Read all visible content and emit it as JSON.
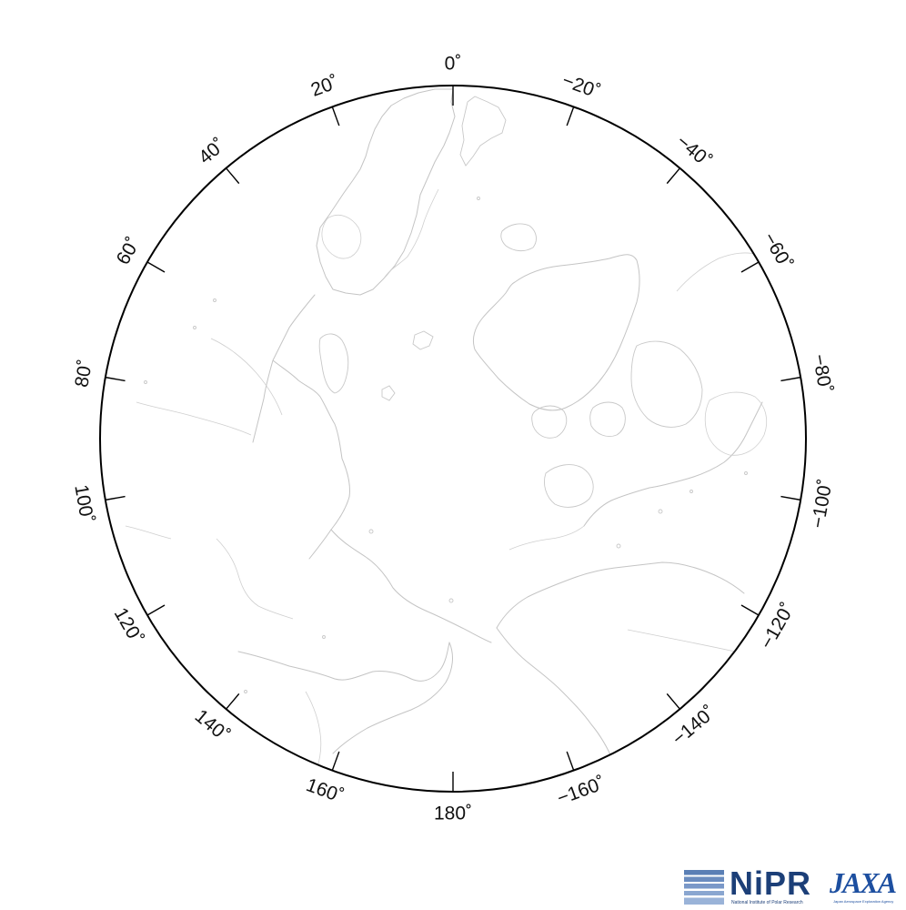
{
  "map": {
    "projection": "polar-stereographic",
    "hemisphere": "north",
    "center_longitude_at_top": 0,
    "frame_color": "#000000",
    "coastline_color": "#c4c4c4",
    "background_color": "#ffffff",
    "longitude_labels": [
      {
        "id": "0",
        "text": "0˚"
      },
      {
        "id": "20",
        "text": "20˚"
      },
      {
        "id": "40",
        "text": "40˚"
      },
      {
        "id": "60",
        "text": "60˚"
      },
      {
        "id": "80",
        "text": "80˚"
      },
      {
        "id": "100",
        "text": "100˚"
      },
      {
        "id": "120",
        "text": "120˚"
      },
      {
        "id": "140",
        "text": "140˚"
      },
      {
        "id": "160",
        "text": "160˚"
      },
      {
        "id": "180",
        "text": "180˚"
      },
      {
        "id": "m160",
        "text": "−160˚"
      },
      {
        "id": "m140",
        "text": "−140˚"
      },
      {
        "id": "m120",
        "text": "−120˚"
      },
      {
        "id": "m100",
        "text": "−100˚"
      },
      {
        "id": "m80",
        "text": "−80˚"
      },
      {
        "id": "m60",
        "text": "−60˚"
      },
      {
        "id": "m40",
        "text": "−40˚"
      },
      {
        "id": "m20",
        "text": "−20˚"
      }
    ]
  },
  "logos": {
    "nipr": {
      "name": "NiPR",
      "subtitle": "National Institute of Polar Research",
      "color": "#1c3f78"
    },
    "jaxa": {
      "name": "JAXA",
      "subtitle": "Japan Aerospace Exploration Agency",
      "color": "#1d4fa0"
    }
  }
}
